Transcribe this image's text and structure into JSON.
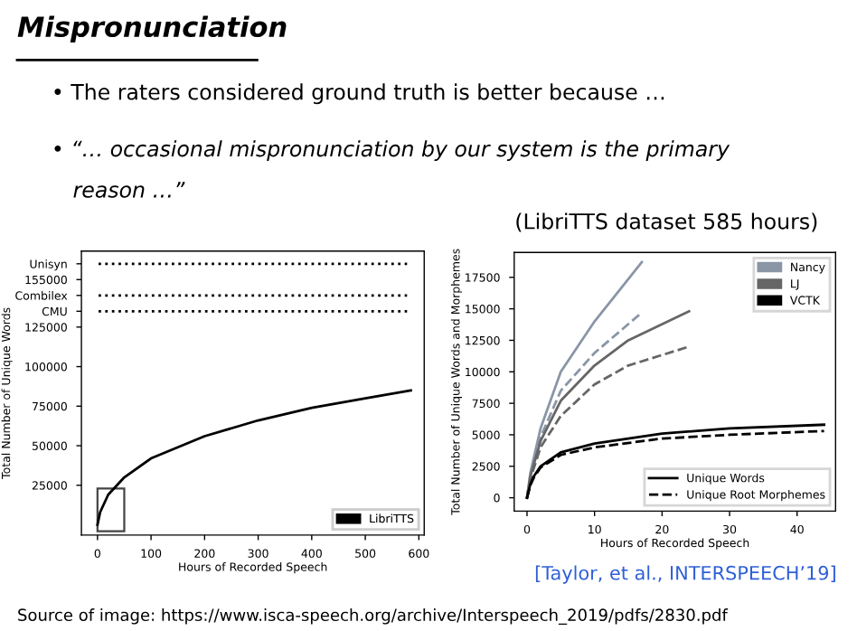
{
  "chart_data": [
    {
      "type": "other",
      "title": "Mispronunciation",
      "annotations": [
        "• The raters considered ground truth is better because …",
        "• “… occasional mispronunciation by our system is the primary",
        "reason …”",
        "(LibriTTS dataset 585 hours)",
        "[Taylor, et al., INTERSPEECH’19]",
        "Source of image: https://www.isca-speech.org/archive/Interspeech_2019/pdfs/2830.pdf"
      ]
    },
    {
      "type": "line",
      "xlabel": "Hours of Recorded Speech",
      "ylabel": "Total Number of Unique Words",
      "xlim": [
        -30,
        610
      ],
      "ylim": [
        -6500,
        173000
      ],
      "xticks": [
        0,
        100,
        200,
        300,
        400,
        500,
        600
      ],
      "yticks": [
        25000,
        50000,
        75000,
        100000,
        125000,
        {
          "value": 135000,
          "label": "CMU"
        },
        {
          "value": 145000,
          "label": "Combilex"
        },
        155000,
        {
          "value": 165000,
          "label": "Unisyn"
        }
      ],
      "ref_lines": [
        {
          "axis": "y",
          "value": 135000,
          "color": "#000000",
          "line_style": "dotted"
        },
        {
          "axis": "y",
          "value": 145000,
          "color": "#000000",
          "line_style": "dotted"
        },
        {
          "axis": "y",
          "value": 165000,
          "color": "#000000",
          "line_style": "dotted"
        }
      ],
      "legend": "lower right",
      "grid": false,
      "line_style": "solid",
      "marker": "none",
      "series": [
        {
          "name": "LibriTTS",
          "color": "#000000",
          "x": [
            0,
            5,
            20,
            50,
            100,
            200,
            300,
            400,
            500,
            585
          ],
          "values": [
            0,
            8000,
            19000,
            30000,
            42000,
            56000,
            66000,
            74000,
            80000,
            85000
          ]
        }
      ]
    },
    {
      "type": "line",
      "xlabel": "Hours of Recorded Speech",
      "ylabel": "Total Number of Unique Words and Morphemes",
      "xlim": [
        -1.9,
        45.7
      ],
      "ylim": [
        -1060,
        19480
      ],
      "xticks": [
        0,
        10,
        20,
        30,
        40
      ],
      "yticks": [
        0,
        2500,
        5000,
        7500,
        10000,
        12500,
        15000,
        17500
      ],
      "legend": "top right",
      "grid": false,
      "marker": "none",
      "annotations": [
        "Unique Words",
        "Unique Root Morphemes"
      ],
      "series": [
        {
          "name": "Nancy",
          "color": "#8a96a6",
          "line_style": "solid",
          "x": [
            0,
            0.5,
            2,
            5,
            10,
            17
          ],
          "values": [
            0,
            2000,
            5500,
            10000,
            14000,
            18700
          ]
        },
        {
          "color": "#8a96a6",
          "line_style": "dashed",
          "x": [
            0,
            0.5,
            2,
            5,
            10,
            17
          ],
          "values": [
            0,
            1800,
            4800,
            8500,
            11500,
            14700
          ]
        },
        {
          "name": "LJ",
          "color": "#666666",
          "line_style": "solid",
          "x": [
            0,
            0.5,
            2,
            5,
            10,
            15,
            24
          ],
          "values": [
            0,
            1700,
            4500,
            7700,
            10500,
            12500,
            14800
          ]
        },
        {
          "color": "#666666",
          "line_style": "dashed",
          "x": [
            0,
            0.5,
            2,
            5,
            10,
            15,
            24
          ],
          "values": [
            0,
            1500,
            4000,
            6500,
            9000,
            10500,
            12000
          ]
        },
        {
          "name": "VCTK",
          "color": "#000000",
          "line_style": "solid",
          "x": [
            0,
            0.5,
            1,
            2,
            5,
            10,
            20,
            30,
            44
          ],
          "values": [
            0,
            1100,
            1700,
            2500,
            3600,
            4300,
            5100,
            5500,
            5800
          ]
        },
        {
          "color": "#000000",
          "line_style": "dashed",
          "x": [
            0,
            0.5,
            1,
            2,
            5,
            10,
            20,
            30,
            44
          ],
          "values": [
            0,
            1000,
            1600,
            2400,
            3400,
            4000,
            4700,
            5000,
            5300
          ]
        }
      ]
    }
  ]
}
